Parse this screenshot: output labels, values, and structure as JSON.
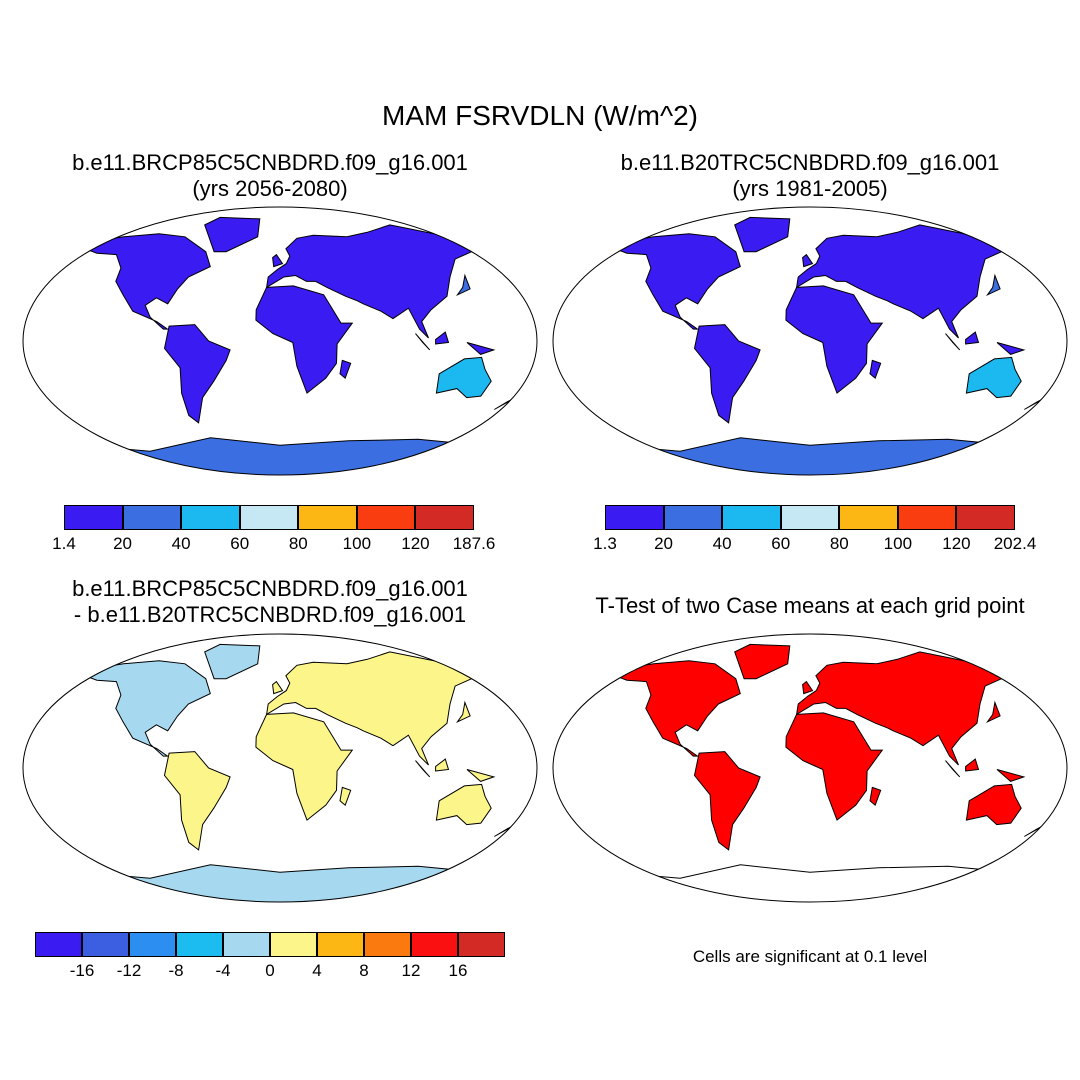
{
  "title": "MAM FSRVDLN (W/m^2)",
  "panels": [
    {
      "id": "future",
      "title_lines": [
        "b.e11.BRCP85C5CNBDRD.f09_g16.001",
        "(yrs 2056-2080)"
      ],
      "colorbar": {
        "colors": [
          "#3a1cf2",
          "#3b6ee0",
          "#1cb8f0",
          "#c6e8f5",
          "#fdb714",
          "#fa3d10",
          "#d32a26"
        ],
        "labels": [
          "1.4",
          "20",
          "40",
          "60",
          "80",
          "100",
          "120",
          "187.6"
        ]
      }
    },
    {
      "id": "historical",
      "title_lines": [
        "b.e11.B20TRC5CNBDRD.f09_g16.001",
        "(yrs 1981-2005)"
      ],
      "colorbar": {
        "colors": [
          "#3a1cf2",
          "#3b6ee0",
          "#1cb8f0",
          "#c6e8f5",
          "#fdb714",
          "#fa3d10",
          "#d32a26"
        ],
        "labels": [
          "1.3",
          "20",
          "40",
          "60",
          "80",
          "100",
          "120",
          "202.4"
        ]
      }
    },
    {
      "id": "difference",
      "title_lines": [
        "b.e11.BRCP85C5CNBDRD.f09_g16.001",
        "- b.e11.B20TRC5CNBDRD.f09_g16.001"
      ],
      "colorbar": {
        "colors": [
          "#3a1cf2",
          "#3b5fe0",
          "#2b8ef0",
          "#1cbcf0",
          "#a6d8f0",
          "#fcf58a",
          "#fdb714",
          "#fb7a10",
          "#fa1010",
          "#d32a26"
        ],
        "labels": [
          "-16",
          "-12",
          "-8",
          "-4",
          "0",
          "4",
          "8",
          "12",
          "16"
        ]
      }
    },
    {
      "id": "ttest",
      "title_lines": [
        "T-Test of two Case means at each grid point"
      ],
      "note": "Cells are significant at 0.1 level",
      "significant_color": "#ff0000"
    }
  ]
}
